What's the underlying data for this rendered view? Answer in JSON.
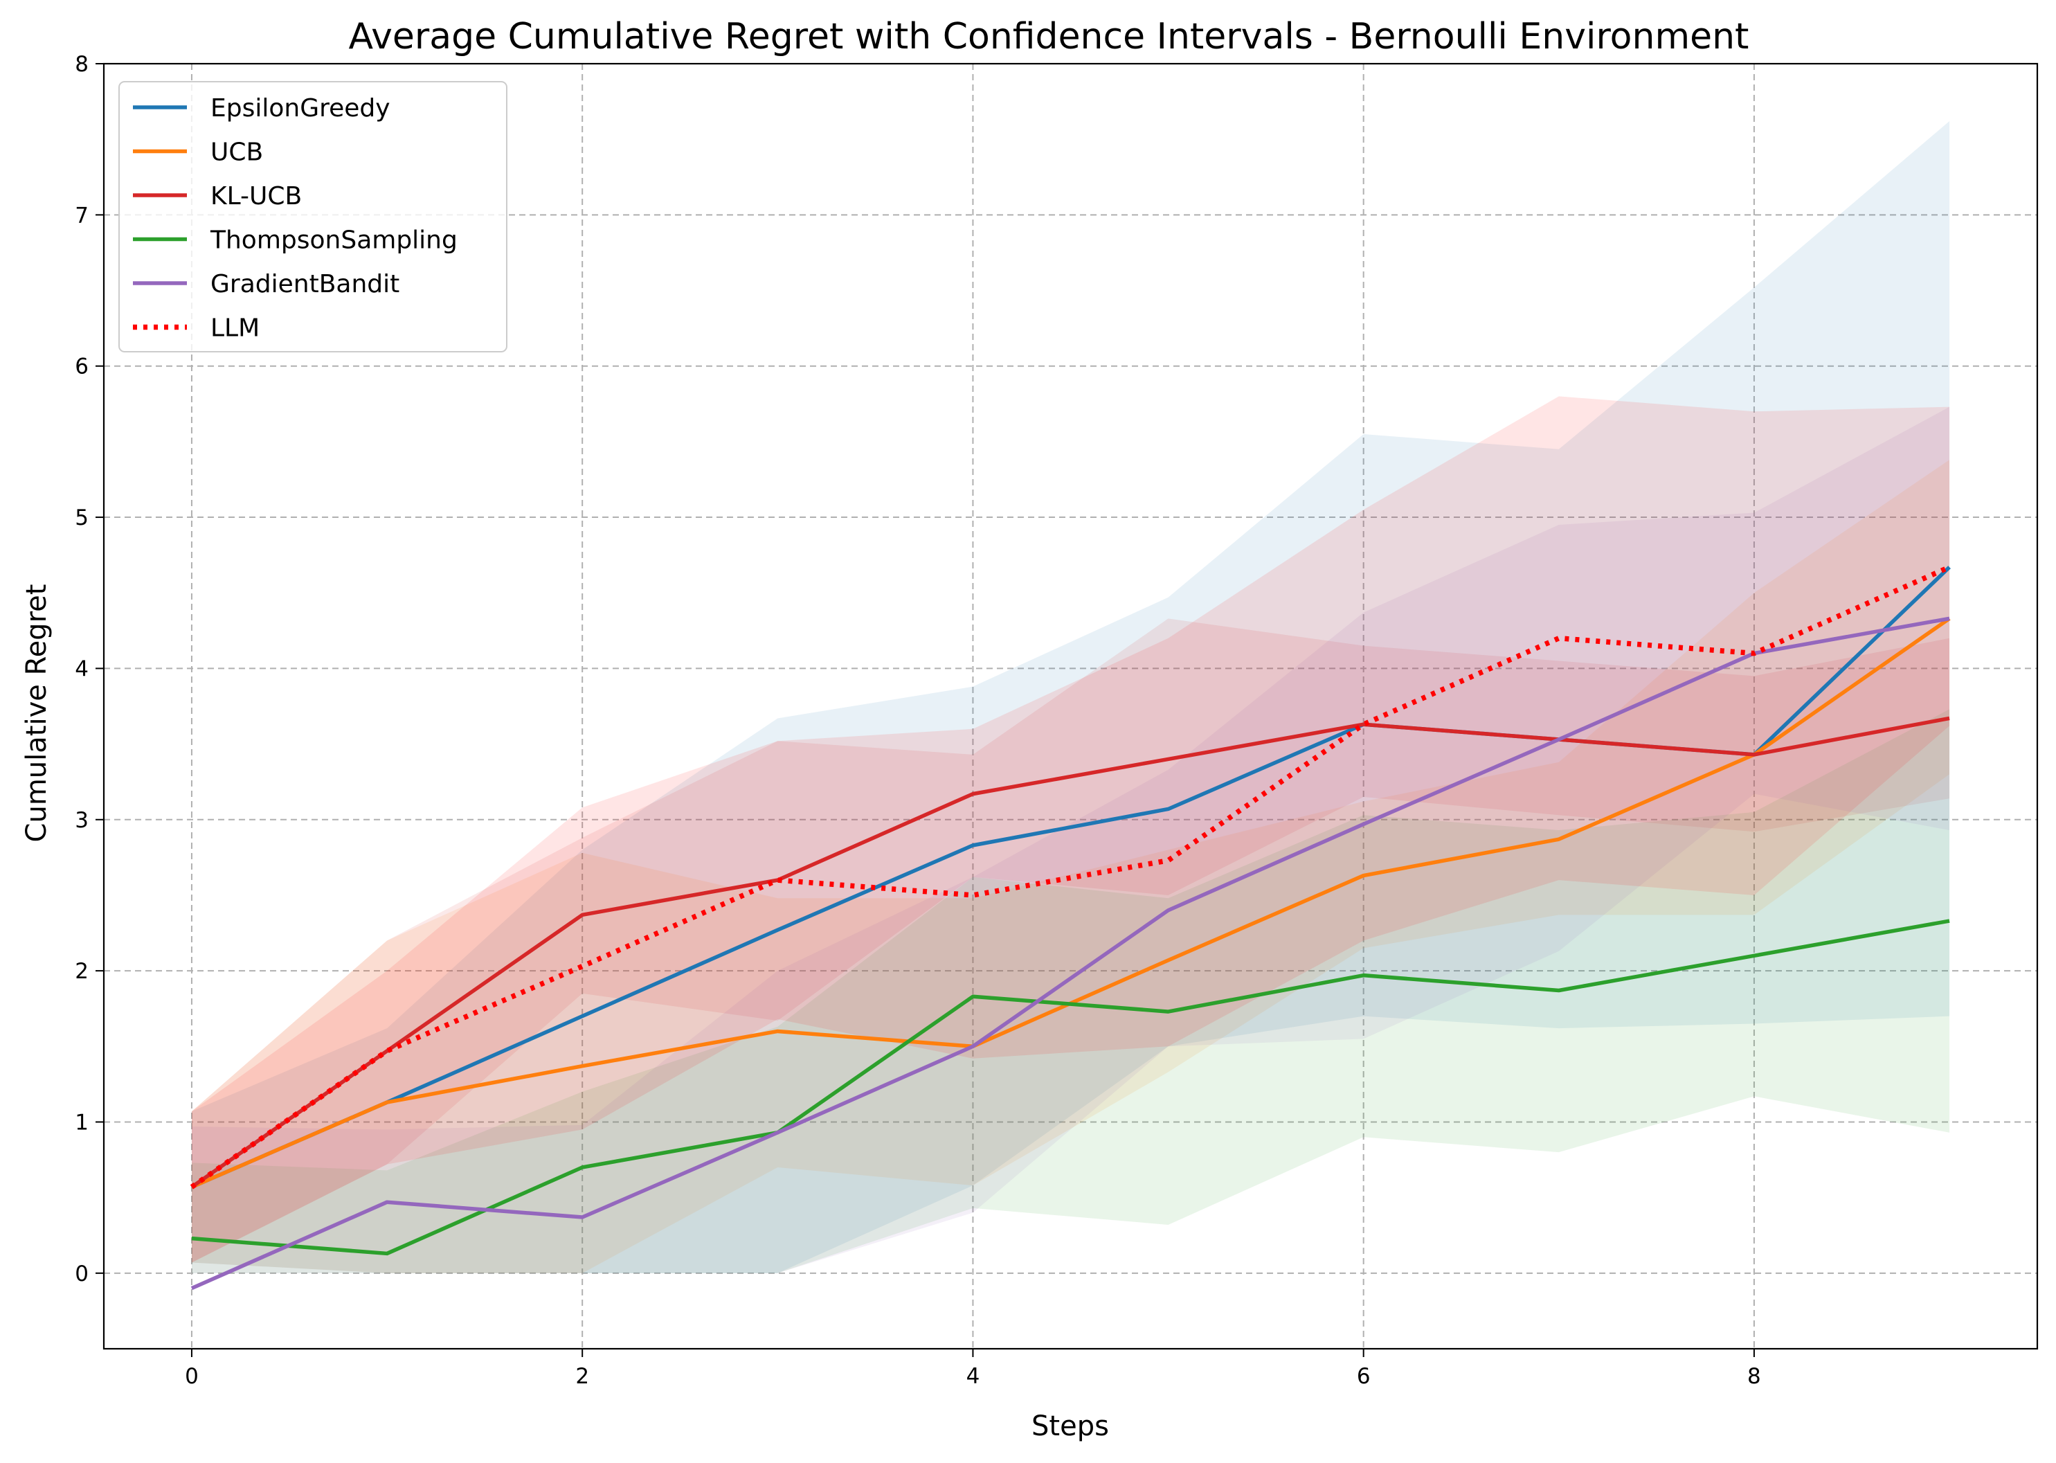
{
  "chart_data": {
    "type": "line",
    "title": "Average Cumulative Regret with Confidence Intervals - Bernoulli Environment",
    "xlabel": "Steps",
    "ylabel": "Cumulative Regret",
    "xlim": [
      -0.45,
      9.45
    ],
    "ylim": [
      -0.5,
      8.0
    ],
    "xticks": [
      0,
      2,
      4,
      6,
      8
    ],
    "yticks": [
      0,
      1,
      2,
      3,
      4,
      5,
      6,
      7,
      8
    ],
    "grid": true,
    "legend_position": "top-left",
    "x": [
      0,
      1,
      2,
      3,
      4,
      5,
      6,
      7,
      8,
      9
    ],
    "series": [
      {
        "name": "EpsilonGreedy",
        "color": "#1f77b4",
        "style": "solid",
        "values": [
          0.57,
          1.13,
          1.7,
          2.27,
          2.83,
          3.07,
          3.63,
          3.53,
          3.43,
          4.67
        ],
        "ci_lower": [
          0.07,
          0.0,
          0.0,
          0.0,
          0.58,
          1.5,
          1.7,
          1.62,
          1.65,
          1.7
        ],
        "ci_upper": [
          1.07,
          1.62,
          2.8,
          3.67,
          3.88,
          4.47,
          5.55,
          5.45,
          6.52,
          7.62
        ]
      },
      {
        "name": "UCB",
        "color": "#ff7f0e",
        "style": "solid",
        "values": [
          0.57,
          1.13,
          1.37,
          1.6,
          1.5,
          2.07,
          2.63,
          2.87,
          3.43,
          4.33
        ],
        "ci_lower": [
          0.07,
          0.0,
          0.0,
          0.7,
          0.58,
          1.33,
          2.15,
          2.37,
          2.37,
          3.3
        ],
        "ci_upper": [
          1.07,
          2.2,
          2.78,
          2.48,
          2.48,
          2.8,
          3.12,
          3.38,
          4.5,
          5.38
        ]
      },
      {
        "name": "KL-UCB",
        "color": "#d62728",
        "style": "solid",
        "values": [
          0.57,
          1.47,
          2.37,
          2.6,
          3.17,
          3.4,
          3.63,
          3.53,
          3.43,
          3.67
        ],
        "ci_lower": [
          0.07,
          0.72,
          1.85,
          1.67,
          2.62,
          2.5,
          3.15,
          3.03,
          2.92,
          3.14
        ],
        "ci_upper": [
          1.07,
          2.2,
          2.88,
          3.52,
          3.43,
          4.33,
          4.15,
          4.05,
          3.95,
          4.2
        ]
      },
      {
        "name": "ThompsonSampling",
        "color": "#2ca02c",
        "style": "solid",
        "values": [
          0.23,
          0.13,
          0.7,
          0.93,
          1.83,
          1.73,
          1.97,
          1.87,
          2.1,
          2.33
        ],
        "ci_lower": [
          0.0,
          0.0,
          0.0,
          0.0,
          0.43,
          0.32,
          0.9,
          0.8,
          1.17,
          0.93
        ],
        "ci_upper": [
          0.73,
          0.68,
          1.2,
          1.63,
          2.62,
          2.48,
          3.03,
          2.93,
          3.05,
          3.73
        ]
      },
      {
        "name": "GradientBandit",
        "color": "#9467bd",
        "style": "solid",
        "values": [
          -0.1,
          0.47,
          0.37,
          0.93,
          1.5,
          2.4,
          2.97,
          3.53,
          4.1,
          4.33
        ],
        "ci_lower": [
          0.0,
          0.0,
          0.0,
          0.0,
          0.4,
          1.5,
          1.55,
          2.13,
          3.17,
          2.93
        ],
        "ci_upper": [
          0.97,
          0.95,
          0.98,
          2.0,
          2.62,
          3.33,
          4.37,
          4.95,
          5.03,
          5.73
        ]
      },
      {
        "name": "LLM",
        "color": "#ff0000",
        "style": "dotted",
        "values": [
          0.57,
          1.47,
          2.03,
          2.6,
          2.5,
          2.73,
          3.63,
          4.2,
          4.1,
          4.67
        ],
        "ci_lower": [
          0.07,
          0.72,
          0.95,
          1.68,
          1.42,
          1.5,
          2.2,
          2.6,
          2.5,
          3.62
        ],
        "ci_upper": [
          1.07,
          2.0,
          3.08,
          3.52,
          3.6,
          4.2,
          5.05,
          5.8,
          5.7,
          5.73
        ]
      }
    ]
  }
}
